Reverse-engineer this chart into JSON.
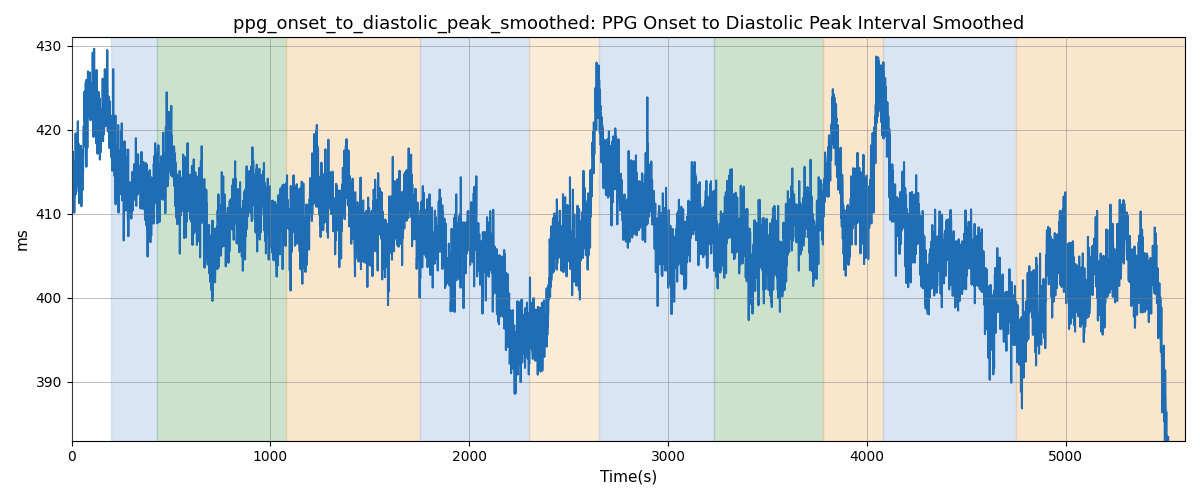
{
  "title": "ppg_onset_to_diastolic_peak_smoothed: PPG Onset to Diastolic Peak Interval Smoothed",
  "xlabel": "Time(s)",
  "ylabel": "ms",
  "ylim": [
    383,
    431
  ],
  "xlim": [
    0,
    5600
  ],
  "yticks": [
    390,
    400,
    410,
    420,
    430
  ],
  "xticks": [
    0,
    1000,
    2000,
    3000,
    4000,
    5000
  ],
  "line_color": "#1f6eb5",
  "line_width": 1.5,
  "title_fontsize": 13,
  "label_fontsize": 11,
  "regions": [
    {
      "xmin": 200,
      "xmax": 430,
      "color": "#aec6e8",
      "alpha": 0.45
    },
    {
      "xmin": 430,
      "xmax": 1080,
      "color": "#90c090",
      "alpha": 0.45
    },
    {
      "xmin": 1080,
      "xmax": 1750,
      "color": "#f5c990",
      "alpha": 0.45
    },
    {
      "xmin": 1750,
      "xmax": 2300,
      "color": "#aec6e8",
      "alpha": 0.45
    },
    {
      "xmin": 2300,
      "xmax": 2650,
      "color": "#f5c990",
      "alpha": 0.35
    },
    {
      "xmin": 2650,
      "xmax": 3230,
      "color": "#aec6e8",
      "alpha": 0.45
    },
    {
      "xmin": 3230,
      "xmax": 3780,
      "color": "#90c090",
      "alpha": 0.45
    },
    {
      "xmin": 3780,
      "xmax": 4080,
      "color": "#f5c990",
      "alpha": 0.45
    },
    {
      "xmin": 4080,
      "xmax": 4750,
      "color": "#aec6e8",
      "alpha": 0.45
    },
    {
      "xmin": 4750,
      "xmax": 5600,
      "color": "#f5c990",
      "alpha": 0.45
    }
  ],
  "seed": 42,
  "n_points": 5550,
  "base_value": 410
}
